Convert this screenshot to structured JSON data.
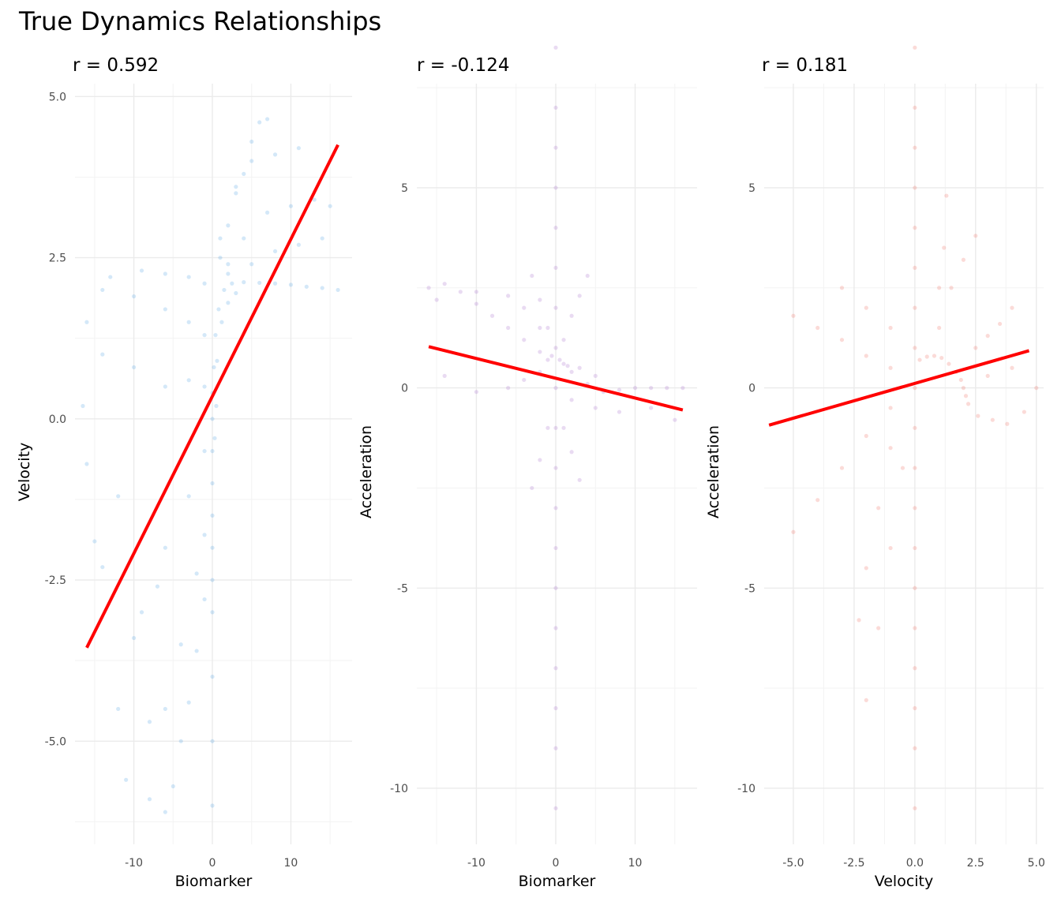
{
  "page_title": "True Dynamics Relationships",
  "colors": {
    "panel1_points": "#3a98e0",
    "panel2_points": "#9b59c6",
    "panel3_points": "#ec5b4c",
    "fit_line": "#ff0000"
  },
  "chart_data": [
    {
      "type": "scatter",
      "subtitle": "r = 0.592",
      "xlabel": "Biomarker",
      "ylabel": "Velocity",
      "xlim": [
        -17.5,
        17.8
      ],
      "ylim": [
        -6.6,
        5.2
      ],
      "xticks": [
        -10,
        0,
        10
      ],
      "xtick_labels": [
        "-10",
        "0",
        "10"
      ],
      "yticks": [
        -5,
        -2.5,
        0,
        2.5,
        5
      ],
      "ytick_labels": [
        "-5.0",
        "-2.5",
        "0.0",
        "2.5",
        "5.0"
      ],
      "grid": true,
      "series": [
        {
          "points": [
            [
              0,
              -6.0
            ],
            [
              0,
              -5.0
            ],
            [
              0,
              -4.0
            ],
            [
              0,
              -3.0
            ],
            [
              0,
              -2.5
            ],
            [
              0,
              -2.0
            ],
            [
              0,
              -1.5
            ],
            [
              0,
              -1.0
            ],
            [
              0,
              -0.5
            ],
            [
              0,
              0.0
            ],
            [
              0,
              0.4
            ],
            [
              0.2,
              0.8
            ],
            [
              0.4,
              1.3
            ],
            [
              0.8,
              1.7
            ],
            [
              1.5,
              2.0
            ],
            [
              2.5,
              2.1
            ],
            [
              4,
              2.12
            ],
            [
              6,
              2.11
            ],
            [
              8,
              2.1
            ],
            [
              10,
              2.08
            ],
            [
              12,
              2.05
            ],
            [
              14,
              2.03
            ],
            [
              16,
              2.0
            ],
            [
              -1,
              -2.8
            ],
            [
              -2,
              -3.6
            ],
            [
              -3,
              -4.4
            ],
            [
              -4,
              -5.0
            ],
            [
              -5,
              -5.7
            ],
            [
              -6,
              -6.1
            ],
            [
              -1,
              -1.8
            ],
            [
              -2,
              -2.4
            ],
            [
              -4,
              -3.5
            ],
            [
              -6,
              -4.5
            ],
            [
              -8,
              -4.7
            ],
            [
              -1,
              -0.5
            ],
            [
              -3,
              -1.2
            ],
            [
              -6,
              -2.0
            ],
            [
              -10,
              -3.4
            ],
            [
              -12,
              -4.5
            ],
            [
              -1,
              0.5
            ],
            [
              -3,
              0.6
            ],
            [
              -6,
              0.5
            ],
            [
              -10,
              0.8
            ],
            [
              -14,
              1.0
            ],
            [
              -1,
              1.3
            ],
            [
              -3,
              1.5
            ],
            [
              -6,
              1.7
            ],
            [
              -10,
              1.9
            ],
            [
              -14,
              2.0
            ],
            [
              -16,
              1.5
            ],
            [
              -1,
              2.1
            ],
            [
              -3,
              2.2
            ],
            [
              -6,
              2.25
            ],
            [
              -9,
              2.3
            ],
            [
              -13,
              2.2
            ],
            [
              1,
              2.5
            ],
            [
              2,
              3.0
            ],
            [
              3,
              3.5
            ],
            [
              4,
              3.8
            ],
            [
              5,
              4.3
            ],
            [
              6,
              4.6
            ],
            [
              7,
              4.65
            ],
            [
              1,
              2.8
            ],
            [
              3,
              3.6
            ],
            [
              5,
              4.0
            ],
            [
              8,
              4.1
            ],
            [
              11,
              4.2
            ],
            [
              2,
              2.4
            ],
            [
              4,
              2.8
            ],
            [
              7,
              3.2
            ],
            [
              10,
              3.3
            ],
            [
              13,
              3.4
            ],
            [
              15,
              3.3
            ],
            [
              2,
              2.25
            ],
            [
              5,
              2.4
            ],
            [
              8,
              2.6
            ],
            [
              11,
              2.7
            ],
            [
              14,
              2.8
            ],
            [
              -12,
              -1.2
            ],
            [
              -14,
              -2.3
            ],
            [
              -15,
              -1.9
            ],
            [
              -16,
              -0.7
            ],
            [
              -16.5,
              0.2
            ],
            [
              -7,
              -2.6
            ],
            [
              -9,
              -3.0
            ],
            [
              -11,
              -5.6
            ],
            [
              -8,
              -5.9
            ],
            [
              0.5,
              0.2
            ],
            [
              0.3,
              -0.3
            ],
            [
              0.6,
              0.9
            ],
            [
              1.2,
              1.5
            ],
            [
              2,
              1.8
            ],
            [
              3,
              1.95
            ]
          ]
        }
      ],
      "fit_line": {
        "x": [
          -16,
          16
        ],
        "y": [
          -3.55,
          4.25
        ]
      }
    },
    {
      "type": "scatter",
      "subtitle": "r = -0.124",
      "xlabel": "Biomarker",
      "ylabel": "Acceleration",
      "xlim": [
        -17.5,
        17.8
      ],
      "ylim": [
        -11.4,
        7.6
      ],
      "xticks": [
        -10,
        0,
        10
      ],
      "xtick_labels": [
        "-10",
        "0",
        "10"
      ],
      "yticks": [
        -10,
        -5,
        0,
        5
      ],
      "ytick_labels": [
        "-10",
        "-5",
        "0",
        "5"
      ],
      "grid": true,
      "series": [
        {
          "points": [
            [
              0,
              -10.5
            ],
            [
              0,
              -9.0
            ],
            [
              0,
              -8.0
            ],
            [
              0,
              -7.0
            ],
            [
              0,
              -6.0
            ],
            [
              0,
              -5.0
            ],
            [
              0,
              -4.0
            ],
            [
              0,
              -3.0
            ],
            [
              0,
              -2.0
            ],
            [
              0,
              -1.0
            ],
            [
              0,
              0.0
            ],
            [
              0,
              1.0
            ],
            [
              0,
              2.0
            ],
            [
              0,
              3.0
            ],
            [
              0,
              4.0
            ],
            [
              0,
              5.0
            ],
            [
              0,
              6.0
            ],
            [
              0,
              7.0
            ],
            [
              0,
              8.5
            ],
            [
              -2,
              0.9
            ],
            [
              -4,
              1.2
            ],
            [
              -6,
              1.5
            ],
            [
              -8,
              1.8
            ],
            [
              -10,
              2.1
            ],
            [
              -12,
              2.4
            ],
            [
              -14,
              2.6
            ],
            [
              -16,
              2.5
            ],
            [
              -2,
              0.4
            ],
            [
              -4,
              0.2
            ],
            [
              -6,
              0.0
            ],
            [
              -10,
              -0.1
            ],
            [
              -14,
              0.3
            ],
            [
              -2,
              1.5
            ],
            [
              -4,
              2.0
            ],
            [
              -6,
              2.3
            ],
            [
              -10,
              2.4
            ],
            [
              -15,
              2.2
            ],
            [
              2,
              0.4
            ],
            [
              4,
              0.1
            ],
            [
              6,
              -0.1
            ],
            [
              8,
              -0.05
            ],
            [
              10,
              0.0
            ],
            [
              12,
              0.0
            ],
            [
              14,
              0.0
            ],
            [
              16,
              0.0
            ],
            [
              2,
              -0.3
            ],
            [
              5,
              -0.5
            ],
            [
              8,
              -0.6
            ],
            [
              12,
              -0.5
            ],
            [
              15,
              -0.8
            ],
            [
              1,
              1.2
            ],
            [
              2,
              1.8
            ],
            [
              3,
              2.3
            ],
            [
              4,
              2.8
            ],
            [
              -1,
              1.5
            ],
            [
              -2,
              2.2
            ],
            [
              -3,
              2.8
            ],
            [
              1,
              -1.0
            ],
            [
              2,
              -1.6
            ],
            [
              3,
              -2.3
            ],
            [
              -1,
              -1.0
            ],
            [
              -2,
              -1.8
            ],
            [
              -3,
              -2.5
            ],
            [
              0.5,
              0.7
            ],
            [
              1,
              0.6
            ],
            [
              1.5,
              0.55
            ],
            [
              -0.5,
              0.8
            ],
            [
              -1,
              0.7
            ],
            [
              3,
              0.5
            ],
            [
              5,
              0.3
            ]
          ]
        }
      ],
      "fit_line": {
        "x": [
          -16,
          16
        ],
        "y": [
          1.03,
          -0.55
        ]
      }
    },
    {
      "type": "scatter",
      "subtitle": "r = 0.181",
      "xlabel": "Velocity",
      "ylabel": "Acceleration",
      "xlim": [
        -6.2,
        5.3
      ],
      "ylim": [
        -11.4,
        7.6
      ],
      "xticks": [
        -5,
        -2.5,
        0,
        2.5,
        5
      ],
      "xtick_labels": [
        "-5.0",
        "-2.5",
        "0.0",
        "2.5",
        "5.0"
      ],
      "yticks": [
        -10,
        -5,
        0,
        5
      ],
      "ytick_labels": [
        "-10",
        "-5",
        "0",
        "5"
      ],
      "grid": true,
      "series": [
        {
          "points": [
            [
              0,
              -10.5
            ],
            [
              0,
              -9.0
            ],
            [
              0,
              -8.0
            ],
            [
              0,
              -7.0
            ],
            [
              0,
              -6.0
            ],
            [
              0,
              -5.0
            ],
            [
              0,
              -4.0
            ],
            [
              0,
              -3.0
            ],
            [
              0,
              -2.0
            ],
            [
              0,
              -1.0
            ],
            [
              0,
              0.0
            ],
            [
              0,
              1.0
            ],
            [
              0,
              2.0
            ],
            [
              0,
              3.0
            ],
            [
              0,
              4.0
            ],
            [
              0,
              5.0
            ],
            [
              0,
              6.0
            ],
            [
              0,
              7.0
            ],
            [
              0,
              8.5
            ],
            [
              0.2,
              0.7
            ],
            [
              0.5,
              0.78
            ],
            [
              0.8,
              0.8
            ],
            [
              1.1,
              0.75
            ],
            [
              1.4,
              0.6
            ],
            [
              1.7,
              0.4
            ],
            [
              1.9,
              0.2
            ],
            [
              2.0,
              0.0
            ],
            [
              2.1,
              -0.2
            ],
            [
              2.2,
              -0.4
            ],
            [
              -1,
              0.5
            ],
            [
              -2,
              0.8
            ],
            [
              -3,
              1.2
            ],
            [
              -4,
              1.5
            ],
            [
              -5,
              1.8
            ],
            [
              -1,
              -0.5
            ],
            [
              -2,
              -1.2
            ],
            [
              -3,
              -2.0
            ],
            [
              -4,
              -2.8
            ],
            [
              -5,
              -3.6
            ],
            [
              -1,
              -1.5
            ],
            [
              -1.5,
              -3.0
            ],
            [
              -2,
              -4.5
            ],
            [
              -2.3,
              -5.8
            ],
            [
              -0.5,
              -2.0
            ],
            [
              -1,
              -4.0
            ],
            [
              -1.5,
              -6.0
            ],
            [
              -2,
              -7.8
            ],
            [
              -1,
              1.5
            ],
            [
              -2,
              2.0
            ],
            [
              -3,
              2.5
            ],
            [
              1,
              1.5
            ],
            [
              1.5,
              2.5
            ],
            [
              2,
              3.2
            ],
            [
              2.5,
              3.8
            ],
            [
              1,
              2.5
            ],
            [
              1.2,
              3.5
            ],
            [
              1.3,
              4.8
            ],
            [
              2.5,
              1.0
            ],
            [
              3,
              1.3
            ],
            [
              3.5,
              1.6
            ],
            [
              4,
              2.0
            ],
            [
              2.6,
              -0.7
            ],
            [
              3.2,
              -0.8
            ],
            [
              3.8,
              -0.9
            ],
            [
              4.5,
              -0.6
            ],
            [
              3,
              0.3
            ],
            [
              4,
              0.5
            ],
            [
              5,
              0.0
            ]
          ]
        }
      ],
      "fit_line": {
        "x": [
          -6.0,
          4.7
        ],
        "y": [
          -0.93,
          0.93
        ]
      }
    }
  ]
}
